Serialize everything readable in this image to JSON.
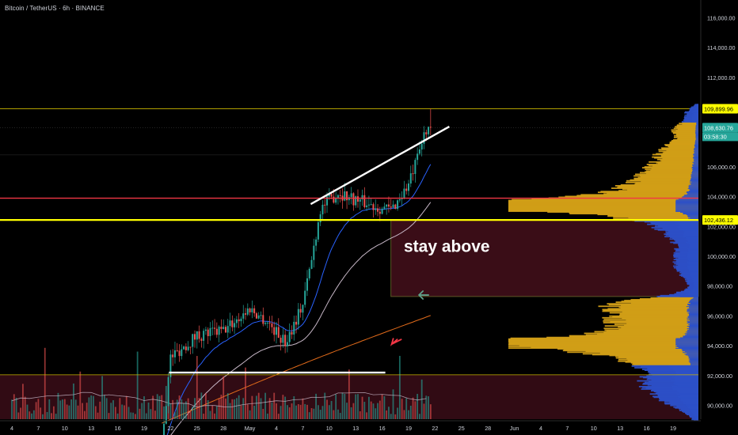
{
  "header": {
    "symbol": "Bitcoin / TetherUS · 6h · BINANCE"
  },
  "colors": {
    "background": "#000000",
    "up_candle": "#26a69a",
    "down_candle": "#ef5350",
    "ema_fast": "#2962ff",
    "ema_slow": "#c7b7c7",
    "long_ma": "#e06a1a",
    "support_line": "#ffff00",
    "resistance_line": "#f23645",
    "zone_fill": "#3a0d17",
    "volume_profile_value_area": "#d4a017",
    "volume_profile_outside": "#2c50c8",
    "price_tag": "#26a69a",
    "high_tag": "#ffff00"
  },
  "chart_data": {
    "type": "candlestick",
    "price_axis": {
      "ylim": [
        89000,
        117000
      ],
      "ticks": [
        "116,000.00",
        "114,000.00",
        "112,000.00",
        "106,000.00",
        "104,000.00",
        "102,000.00",
        "100,000.00",
        "98,000.00",
        "96,000.00",
        "94,000.00",
        "92,000.00",
        "90,000.00"
      ],
      "tick_values": [
        116000,
        114000,
        112000,
        106000,
        104000,
        102000,
        100000,
        98000,
        96000,
        94000,
        92000,
        90000
      ]
    },
    "time_axis": {
      "ticks": [
        "4",
        "7",
        "10",
        "13",
        "16",
        "19",
        "22",
        "25",
        "28",
        "May",
        "4",
        "7",
        "10",
        "13",
        "16",
        "19",
        "22",
        "25",
        "28",
        "Jun",
        "4",
        "7",
        "10",
        "13",
        "16",
        "19"
      ],
      "start": "2025-04-04",
      "step_days": 3
    },
    "horizontal_levels": [
      {
        "price": 109899.96,
        "label": "109,899.96",
        "kind": "high"
      },
      {
        "price": 102436.12,
        "label": "102,436.12",
        "kind": "support"
      },
      {
        "price": 103900,
        "label": "",
        "kind": "resistance"
      },
      {
        "price": 92050,
        "label": "",
        "kind": "base"
      },
      {
        "price": 108630.76,
        "label": "108,630.76",
        "kind": "last_price"
      }
    ],
    "countdown": "03:58:30",
    "annotations": [
      {
        "text": "stay above"
      }
    ],
    "ohlc_anchors": [
      {
        "date": "2025-04-21",
        "close": 87500
      },
      {
        "date": "2025-04-22",
        "close": 93200
      },
      {
        "date": "2025-04-25",
        "close": 94700
      },
      {
        "date": "2025-04-28",
        "close": 95000
      },
      {
        "date": "2025-05-01",
        "close": 96500
      },
      {
        "date": "2025-05-03",
        "close": 95600
      },
      {
        "date": "2025-05-05",
        "close": 94200
      },
      {
        "date": "2025-05-07",
        "close": 96800
      },
      {
        "date": "2025-05-08",
        "close": 99800
      },
      {
        "date": "2025-05-09",
        "close": 103200
      },
      {
        "date": "2025-05-11",
        "close": 104300
      },
      {
        "date": "2025-05-13",
        "close": 103800
      },
      {
        "date": "2025-05-15",
        "close": 103400
      },
      {
        "date": "2025-05-17",
        "close": 103100
      },
      {
        "date": "2025-05-19",
        "close": 104800
      },
      {
        "date": "2025-05-20",
        "close": 106500
      },
      {
        "date": "2025-05-21",
        "close": 108630
      }
    ]
  }
}
